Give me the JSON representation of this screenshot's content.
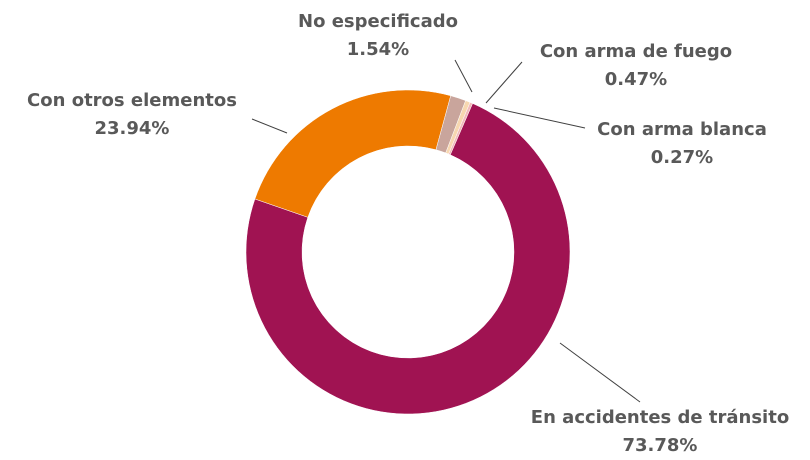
{
  "chart_data": {
    "type": "donut",
    "categories": [
      "En accidentes de tránsito",
      "Con otros elementos",
      "No especificado",
      "Con arma de fuego",
      "Con arma blanca"
    ],
    "values": [
      73.78,
      23.94,
      1.54,
      0.47,
      0.27
    ],
    "value_labels": [
      "73.78%",
      "23.94%",
      "1.54%",
      "0.47%",
      "0.27%"
    ],
    "colors": [
      "#a01352",
      "#ee7a00",
      "#c9a59c",
      "#f7d7b0",
      "#f2b9b9"
    ]
  }
}
